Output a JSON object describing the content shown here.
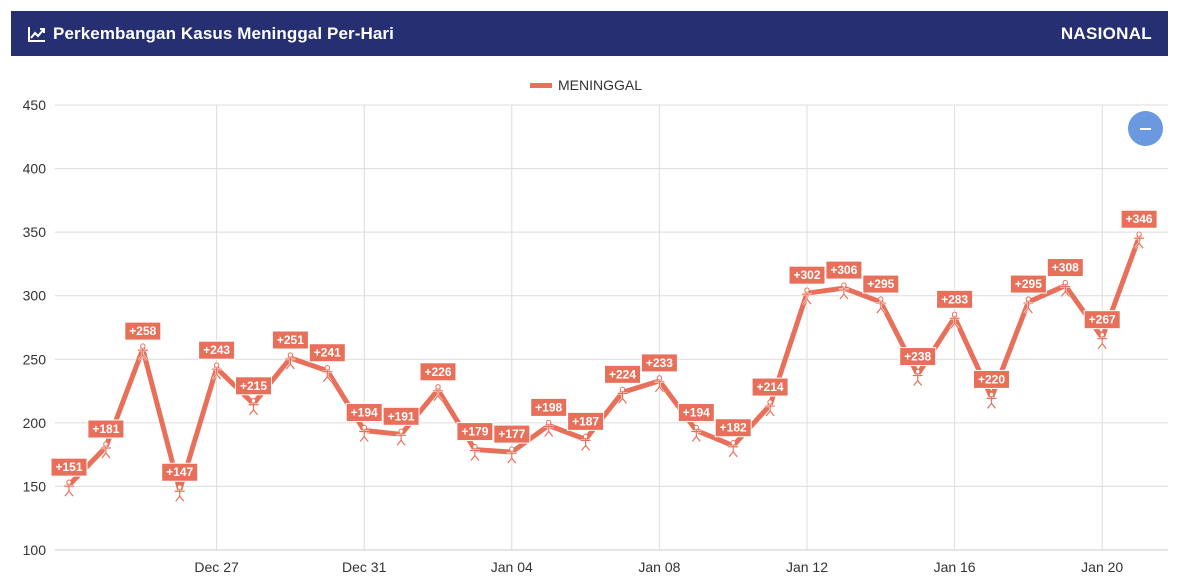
{
  "header": {
    "title": "Perkembangan Kasus Meninggal Per-Hari",
    "region": "NASIONAL",
    "icon": "line-chart-icon"
  },
  "zoom_button": {
    "icon": "minus-icon"
  },
  "colors": {
    "header_bg": "#252f72",
    "series": "#e8705a",
    "grid": "#dddddd",
    "zoom": "#6a99e0"
  },
  "chart_data": {
    "type": "line",
    "title": "",
    "xlabel": "",
    "ylabel": "",
    "ylim": [
      100,
      450
    ],
    "yticks": [
      100,
      150,
      200,
      250,
      300,
      350,
      400,
      450
    ],
    "x_start": "2020-12-23",
    "x_end": "2021-01-21",
    "xticks": [
      {
        "date": "2020-12-27",
        "label": "Dec 27"
      },
      {
        "date": "2020-12-31",
        "label": "Dec 31"
      },
      {
        "date": "2021-01-04",
        "label": "Jan 04"
      },
      {
        "date": "2021-01-08",
        "label": "Jan 08"
      },
      {
        "date": "2021-01-12",
        "label": "Jan 12"
      },
      {
        "date": "2021-01-16",
        "label": "Jan 16"
      },
      {
        "date": "2021-01-20",
        "label": "Jan 20"
      }
    ],
    "grid": true,
    "legend": "top-center",
    "series": [
      {
        "name": "MENINGGAL",
        "color": "#e8705a",
        "points": [
          {
            "date": "2020-12-23",
            "value": 151,
            "label": "+151"
          },
          {
            "date": "2020-12-24",
            "value": 181,
            "label": "+181"
          },
          {
            "date": "2020-12-25",
            "value": 258,
            "label": "+258"
          },
          {
            "date": "2020-12-26",
            "value": 147,
            "label": "+147"
          },
          {
            "date": "2020-12-27",
            "value": 243,
            "label": "+243"
          },
          {
            "date": "2020-12-28",
            "value": 215,
            "label": "+215"
          },
          {
            "date": "2020-12-29",
            "value": 251,
            "label": "+251"
          },
          {
            "date": "2020-12-30",
            "value": 241,
            "label": "+241"
          },
          {
            "date": "2020-12-31",
            "value": 194,
            "label": "+194"
          },
          {
            "date": "2021-01-01",
            "value": 191,
            "label": "+191"
          },
          {
            "date": "2021-01-02",
            "value": 226,
            "label": "+226"
          },
          {
            "date": "2021-01-03",
            "value": 179,
            "label": "+179"
          },
          {
            "date": "2021-01-04",
            "value": 177,
            "label": "+177"
          },
          {
            "date": "2021-01-05",
            "value": 198,
            "label": "+198"
          },
          {
            "date": "2021-01-06",
            "value": 187,
            "label": "+187"
          },
          {
            "date": "2021-01-07",
            "value": 224,
            "label": "+224"
          },
          {
            "date": "2021-01-08",
            "value": 233,
            "label": "+233"
          },
          {
            "date": "2021-01-09",
            "value": 194,
            "label": "+194"
          },
          {
            "date": "2021-01-10",
            "value": 182,
            "label": "+182"
          },
          {
            "date": "2021-01-11",
            "value": 214,
            "label": "+214"
          },
          {
            "date": "2021-01-12",
            "value": 302,
            "label": "+302"
          },
          {
            "date": "2021-01-13",
            "value": 306,
            "label": "+306"
          },
          {
            "date": "2021-01-14",
            "value": 295,
            "label": "+295"
          },
          {
            "date": "2021-01-15",
            "value": 238,
            "label": "+238"
          },
          {
            "date": "2021-01-16",
            "value": 283,
            "label": "+283"
          },
          {
            "date": "2021-01-17",
            "value": 220,
            "label": "+220"
          },
          {
            "date": "2021-01-18",
            "value": 295,
            "label": "+295"
          },
          {
            "date": "2021-01-19",
            "value": 308,
            "label": "+308"
          },
          {
            "date": "2021-01-20",
            "value": 267,
            "label": "+267"
          },
          {
            "date": "2021-01-21",
            "value": 346,
            "label": "+346"
          }
        ]
      }
    ]
  }
}
